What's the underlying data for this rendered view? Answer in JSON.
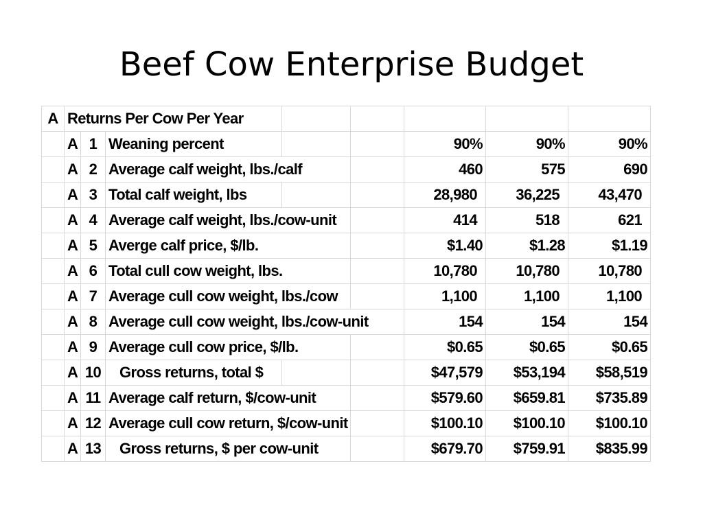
{
  "title": "Beef Cow Enterprise Budget",
  "table": {
    "header": {
      "section": "A",
      "label": "Returns Per Cow Per Year"
    },
    "rows": [
      {
        "code": "A",
        "num": "1",
        "desc": "Weaning percent",
        "v1": "90%",
        "v2": "90%",
        "v3": "90%"
      },
      {
        "code": "A",
        "num": "2",
        "desc": "Average calf weight, lbs./calf",
        "v1": "460",
        "v2": "575",
        "v3": "690"
      },
      {
        "code": "A",
        "num": "3",
        "desc": "Total calf weight, lbs",
        "v1": "28,980",
        "v2": "36,225",
        "v3": "43,470"
      },
      {
        "code": "A",
        "num": "4",
        "desc": "Average calf weight, lbs./cow-unit",
        "v1": "414",
        "v2": "518",
        "v3": "621"
      },
      {
        "code": "A",
        "num": "5",
        "desc": "Averge calf price, $/lb.",
        "v1": "$1.40",
        "v2": "$1.28",
        "v3": "$1.19"
      },
      {
        "code": "A",
        "num": "6",
        "desc": "Total cull cow weight, lbs.",
        "v1": "10,780",
        "v2": "10,780",
        "v3": "10,780"
      },
      {
        "code": "A",
        "num": "7",
        "desc": "Average cull cow weight, lbs./cow",
        "v1": "1,100",
        "v2": "1,100",
        "v3": "1,100"
      },
      {
        "code": "A",
        "num": "8",
        "desc": "Average cull cow weight, lbs./cow-unit",
        "v1": "154",
        "v2": "154",
        "v3": "154"
      },
      {
        "code": "A",
        "num": "9",
        "desc": "Average cull cow price, $/lb.",
        "v1": "$0.65",
        "v2": "$0.65",
        "v3": "$0.65"
      },
      {
        "code": "A",
        "num": "10",
        "desc": "Gross returns, total $",
        "v1": "$47,579",
        "v2": "$53,194",
        "v3": "$58,519"
      },
      {
        "code": "A",
        "num": "11",
        "desc": "Average calf return, $/cow-unit",
        "v1": "$579.60",
        "v2": "$659.81",
        "v3": "$735.89"
      },
      {
        "code": "A",
        "num": "12",
        "desc": "Average cull cow return, $/cow-unit",
        "v1": "$100.10",
        "v2": "$100.10",
        "v3": "$100.10"
      },
      {
        "code": "A",
        "num": "13",
        "desc": "Gross returns, $ per cow-unit",
        "v1": "$679.70",
        "v2": "$759.91",
        "v3": "$835.99"
      }
    ]
  }
}
